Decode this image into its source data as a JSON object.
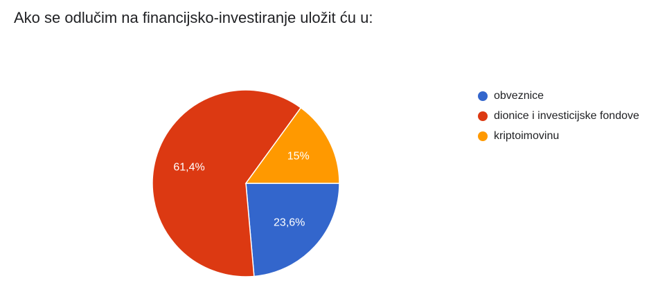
{
  "chart_data": {
    "type": "pie",
    "title": "Ako se odlučim na financijsko-investiranje uložit ću u:",
    "categories": [
      "obveznice",
      "dionice i investicijske fondove",
      "kriptoimovinu"
    ],
    "values": [
      23.6,
      61.4,
      15
    ],
    "value_labels": [
      "23,6%",
      "61,4%",
      "15%"
    ],
    "colors": [
      "#3366cc",
      "#dc3912",
      "#ff9900"
    ],
    "legend": "right"
  }
}
